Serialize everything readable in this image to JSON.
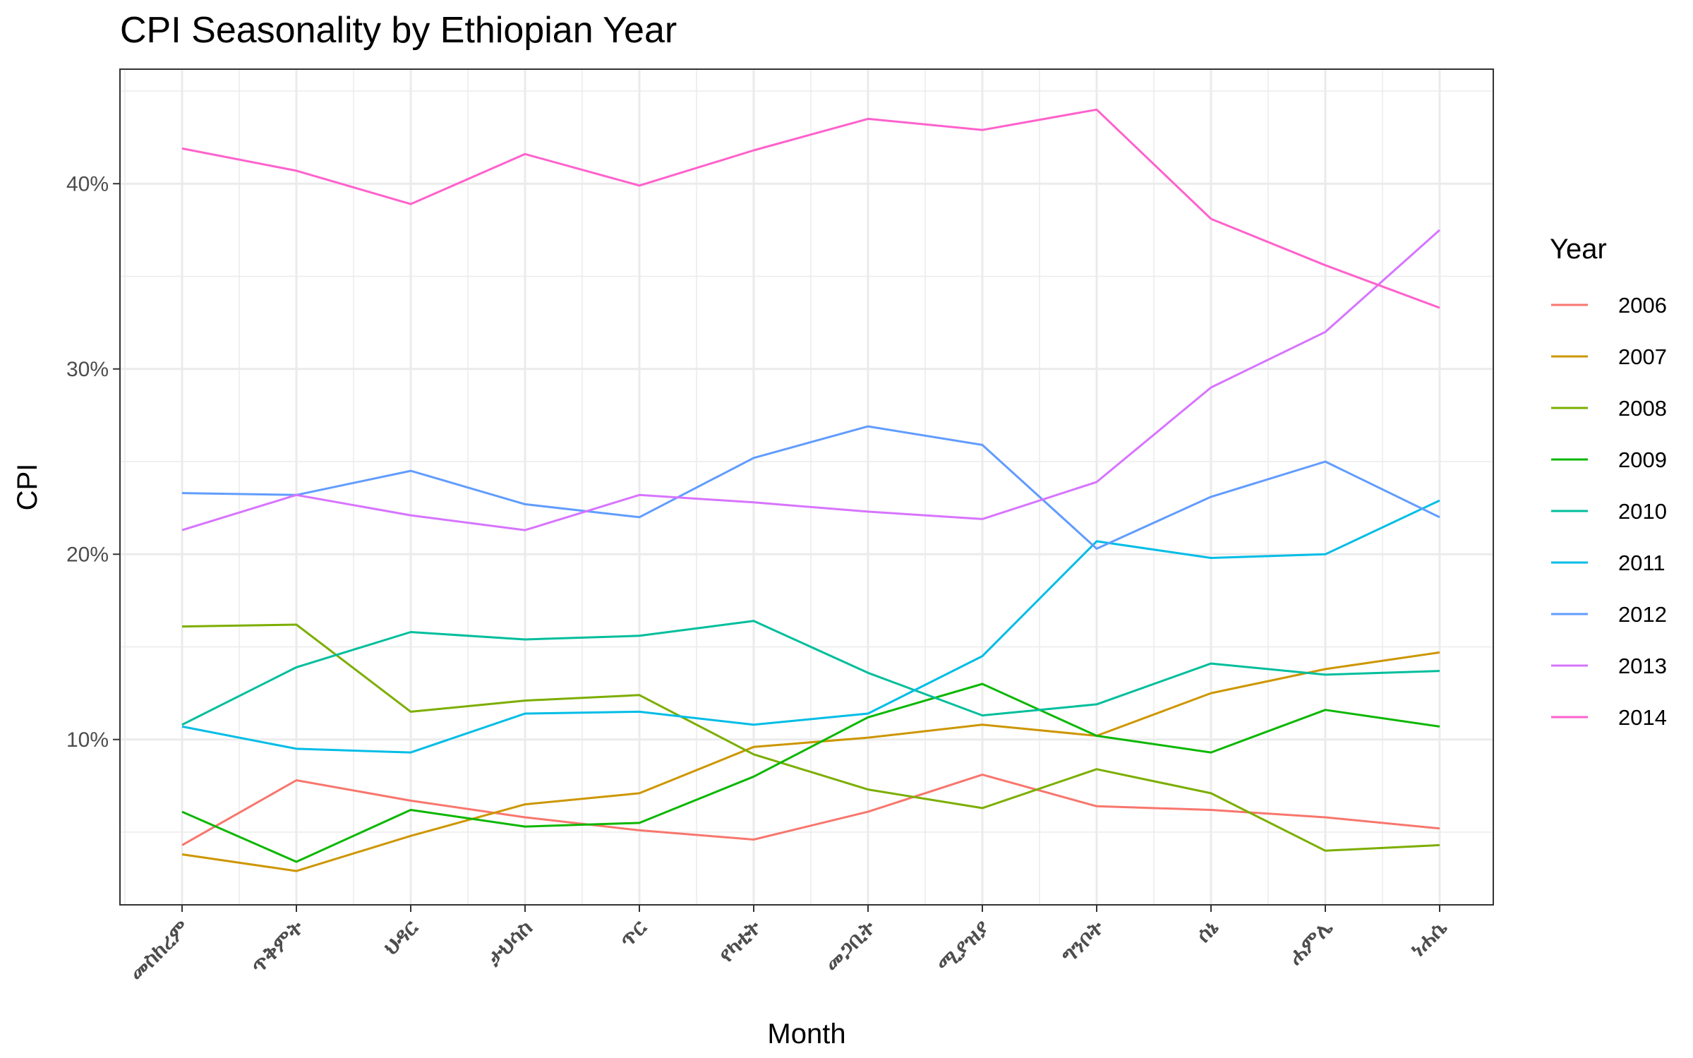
{
  "chart_data": {
    "type": "line",
    "title": "CPI Seasonality by Ethiopian Year",
    "xlabel": "Month",
    "ylabel": "CPI",
    "categories": [
      "መስከረም",
      "ጥቅምት",
      "ህዳር",
      "ታህሳስ",
      "ጥር",
      "የካቲት",
      "መጋቢት",
      "ሚያዝያ",
      "ግንቦት",
      "ሰኔ",
      "ሐምሌ",
      "ነሐሴ"
    ],
    "yticks": [
      "10%",
      "20%",
      "30%",
      "40%"
    ],
    "ylim": [
      1,
      46
    ],
    "grid": true,
    "legend_title": "Year",
    "legend_position": "right",
    "series": [
      {
        "name": "2006",
        "color": "#F8766D",
        "values": [
          4.3,
          7.8,
          6.7,
          5.8,
          5.1,
          4.6,
          6.1,
          8.1,
          6.4,
          6.2,
          5.8,
          5.2
        ]
      },
      {
        "name": "2007",
        "color": "#CD9600",
        "values": [
          3.8,
          2.9,
          4.8,
          6.5,
          7.1,
          9.6,
          10.1,
          10.8,
          10.2,
          12.5,
          13.8,
          14.7
        ]
      },
      {
        "name": "2008",
        "color": "#7CAE00",
        "values": [
          16.1,
          16.2,
          11.5,
          12.1,
          12.4,
          9.2,
          7.3,
          6.3,
          8.4,
          7.1,
          4.0,
          4.3
        ]
      },
      {
        "name": "2009",
        "color": "#0CB702",
        "values": [
          6.1,
          3.4,
          6.2,
          5.3,
          5.5,
          8.0,
          11.2,
          13.0,
          10.2,
          9.3,
          11.6,
          10.7
        ]
      },
      {
        "name": "2010",
        "color": "#00BE9C",
        "values": [
          10.8,
          13.9,
          15.8,
          15.4,
          15.6,
          16.4,
          13.6,
          11.3,
          11.9,
          14.1,
          13.5,
          13.7
        ]
      },
      {
        "name": "2011",
        "color": "#00BDE6",
        "values": [
          10.7,
          9.5,
          9.3,
          11.4,
          11.5,
          10.8,
          11.4,
          14.5,
          20.7,
          19.8,
          20.0,
          22.9
        ]
      },
      {
        "name": "2012",
        "color": "#619CFF",
        "values": [
          23.3,
          23.2,
          24.5,
          22.7,
          22.0,
          25.2,
          26.9,
          25.9,
          20.3,
          23.1,
          25.0,
          22.0
        ]
      },
      {
        "name": "2013",
        "color": "#D774FF",
        "values": [
          21.3,
          23.2,
          22.1,
          21.3,
          23.2,
          22.8,
          22.3,
          21.9,
          23.9,
          29.0,
          32.0,
          37.5
        ]
      },
      {
        "name": "2014",
        "color": "#FF61CC",
        "values": [
          41.9,
          40.7,
          38.9,
          41.6,
          39.9,
          41.8,
          43.5,
          42.9,
          44.0,
          38.1,
          35.6,
          33.3
        ]
      }
    ]
  }
}
